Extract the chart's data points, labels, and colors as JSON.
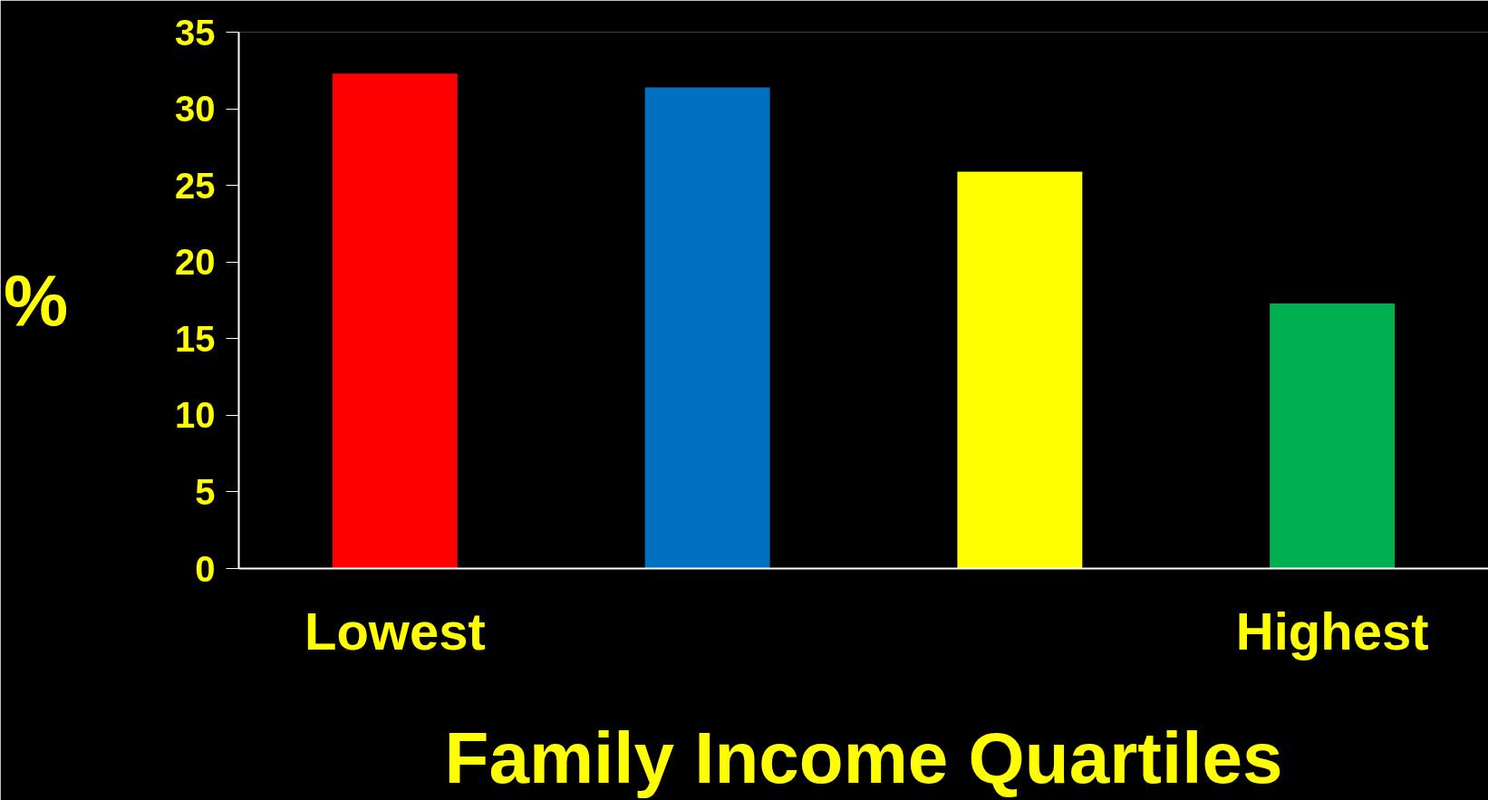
{
  "chart_data": {
    "type": "bar",
    "xlabel": "Family Income Quartiles",
    "ylabel": "%",
    "categories": [
      "Lowest",
      null,
      null,
      "Highest"
    ],
    "values": [
      32.3,
      31.4,
      25.9,
      17.3
    ],
    "colors": [
      "#ff0000",
      "#0070c0",
      "#ffff00",
      "#00b050"
    ],
    "ylim": [
      0,
      35
    ],
    "yticks": [
      0,
      5,
      10,
      15,
      20,
      25,
      30,
      35
    ],
    "grid": false
  }
}
